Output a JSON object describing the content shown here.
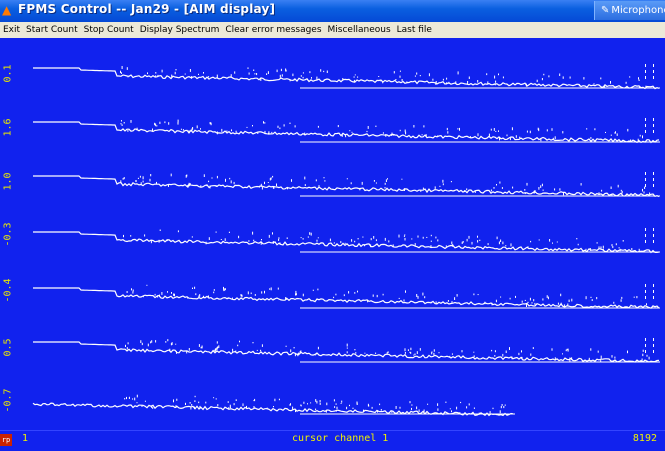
{
  "window": {
    "title": "FPMS Control -- Jan29 - [AIM display]",
    "microphone_label": "Microphone"
  },
  "menu": {
    "items": [
      "Exit",
      "Start Count",
      "Stop Count",
      "Display Spectrum",
      "Clear error messages",
      "Miscellaneous",
      "Last file"
    ]
  },
  "display": {
    "traces": [
      {
        "label": "0.1"
      },
      {
        "label": "1.6"
      },
      {
        "label": "1.0"
      },
      {
        "label": "-0.3"
      },
      {
        "label": "-0.4"
      },
      {
        "label": "0.5"
      },
      {
        "label": "-0.7"
      }
    ],
    "axis_start": "1",
    "cursor_readout": "cursor channel 1",
    "axis_end": "8192",
    "corner_tag": "rp"
  },
  "colors": {
    "plot_background": "#1122ee",
    "trace": "#ffffff",
    "label_text": "#e8e800"
  }
}
